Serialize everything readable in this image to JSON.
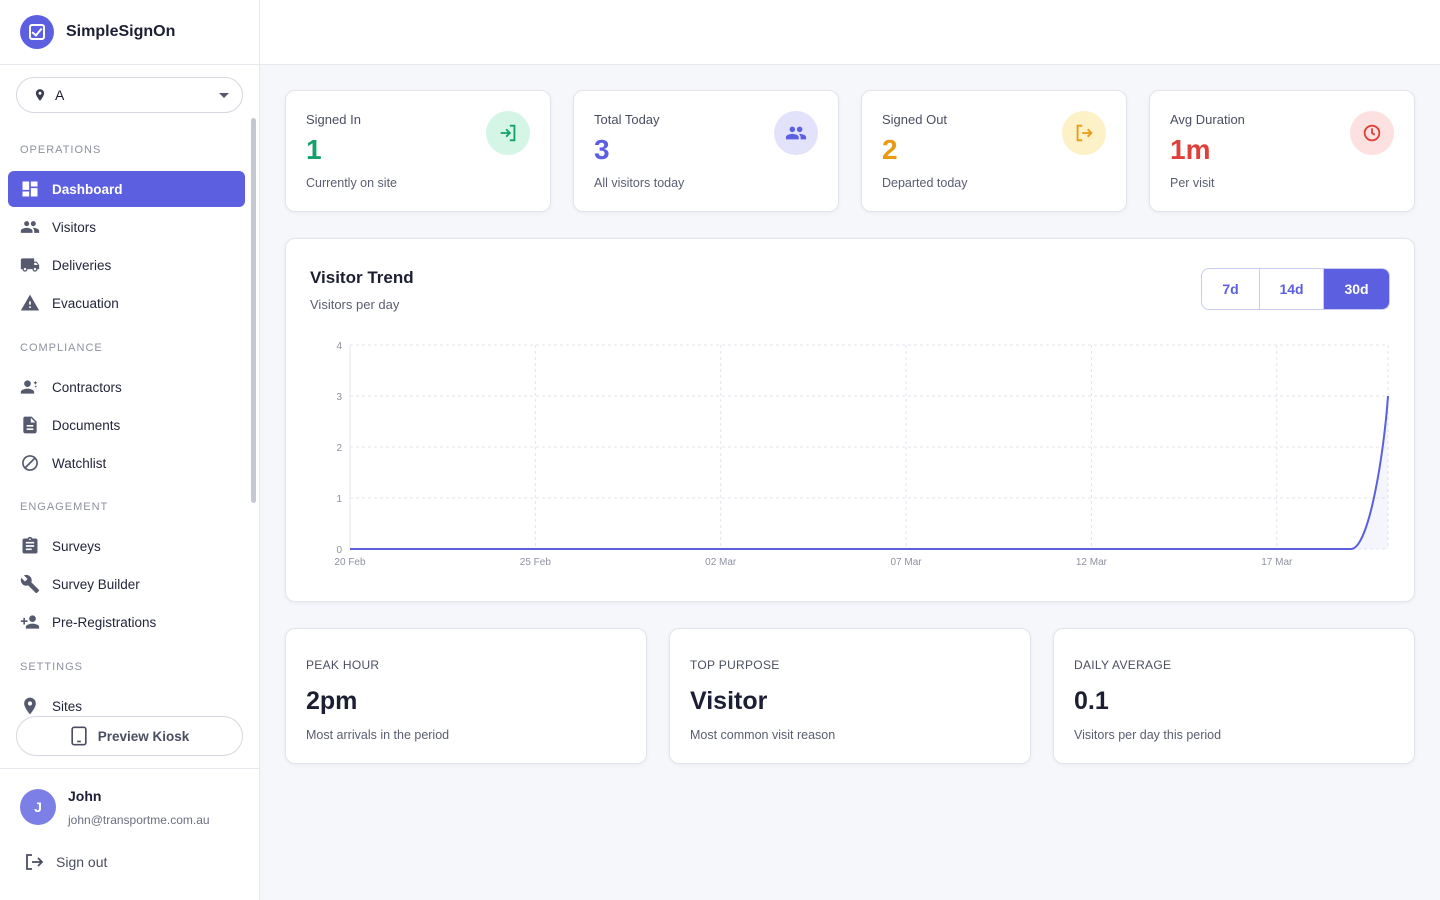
{
  "app": {
    "name": "SimpleSignOn"
  },
  "site_select": {
    "value": "A"
  },
  "sidebar": {
    "sections": [
      {
        "label": "OPERATIONS",
        "items": [
          {
            "label": "Dashboard",
            "icon": "dashboard-icon",
            "active": true
          },
          {
            "label": "Visitors",
            "icon": "people-icon"
          },
          {
            "label": "Deliveries",
            "icon": "truck-icon"
          },
          {
            "label": "Evacuation",
            "icon": "warning-icon"
          }
        ]
      },
      {
        "label": "COMPLIANCE",
        "items": [
          {
            "label": "Contractors",
            "icon": "contractor-icon"
          },
          {
            "label": "Documents",
            "icon": "document-icon"
          },
          {
            "label": "Watchlist",
            "icon": "block-icon"
          }
        ]
      },
      {
        "label": "ENGAGEMENT",
        "items": [
          {
            "label": "Surveys",
            "icon": "clipboard-icon"
          },
          {
            "label": "Survey Builder",
            "icon": "wrench-icon"
          },
          {
            "label": "Pre-Registrations",
            "icon": "person-add-icon"
          }
        ]
      },
      {
        "label": "SETTINGS",
        "items": [
          {
            "label": "Sites",
            "icon": "location-pin-icon"
          }
        ]
      }
    ],
    "kiosk_button": "Preview Kiosk"
  },
  "user": {
    "initial": "J",
    "name": "John",
    "email": "john@transportme.com.au",
    "signout_label": "Sign out"
  },
  "stats": [
    {
      "title": "Signed In",
      "value": "1",
      "sub": "Currently on site",
      "color": "#16a06a",
      "icon_bg": "#d5f5e6",
      "icon": "sign-in-icon"
    },
    {
      "title": "Total Today",
      "value": "3",
      "sub": "All visitors today",
      "color": "#5b5fe0",
      "icon_bg": "#e2e3fb",
      "icon": "people-icon"
    },
    {
      "title": "Signed Out",
      "value": "2",
      "sub": "Departed today",
      "color": "#e89a12",
      "icon_bg": "#fdf1c8",
      "icon": "sign-out-icon"
    },
    {
      "title": "Avg Duration",
      "value": "1m",
      "sub": "Per visit",
      "color": "#e0403a",
      "icon_bg": "#fde1e1",
      "icon": "clock-icon"
    }
  ],
  "trend": {
    "title": "Visitor Trend",
    "subtitle": "Visitors per day",
    "ranges": [
      "7d",
      "14d",
      "30d"
    ],
    "active_range": "30d"
  },
  "chart_data": {
    "type": "area",
    "x_ticks": [
      "20 Feb",
      "25 Feb",
      "02 Mar",
      "07 Mar",
      "12 Mar",
      "17 Mar"
    ],
    "y_ticks": [
      "0",
      "1",
      "2",
      "3",
      "4"
    ],
    "ylim": [
      0,
      4
    ],
    "x": [
      "20 Feb",
      "21 Feb",
      "22 Feb",
      "23 Feb",
      "24 Feb",
      "25 Feb",
      "26 Feb",
      "27 Feb",
      "28 Feb",
      "01 Mar",
      "02 Mar",
      "03 Mar",
      "04 Mar",
      "05 Mar",
      "06 Mar",
      "07 Mar",
      "08 Mar",
      "09 Mar",
      "10 Mar",
      "11 Mar",
      "12 Mar",
      "13 Mar",
      "14 Mar",
      "15 Mar",
      "16 Mar",
      "17 Mar",
      "18 Mar",
      "19 Mar",
      "20 Mar"
    ],
    "series": [
      {
        "values": [
          0,
          0,
          0,
          0,
          0,
          0,
          0,
          0,
          0,
          0,
          0,
          0,
          0,
          0,
          0,
          0,
          0,
          0,
          0,
          0,
          0,
          0,
          0,
          0,
          0,
          0,
          0,
          0,
          3
        ],
        "color": "#5b5fe0"
      }
    ],
    "grid": true
  },
  "info": [
    {
      "label": "PEAK HOUR",
      "value": "2pm",
      "sub": "Most arrivals in the period"
    },
    {
      "label": "TOP PURPOSE",
      "value": "Visitor",
      "sub": "Most common visit reason"
    },
    {
      "label": "DAILY AVERAGE",
      "value": "0.1",
      "sub": "Visitors per day this period"
    }
  ]
}
